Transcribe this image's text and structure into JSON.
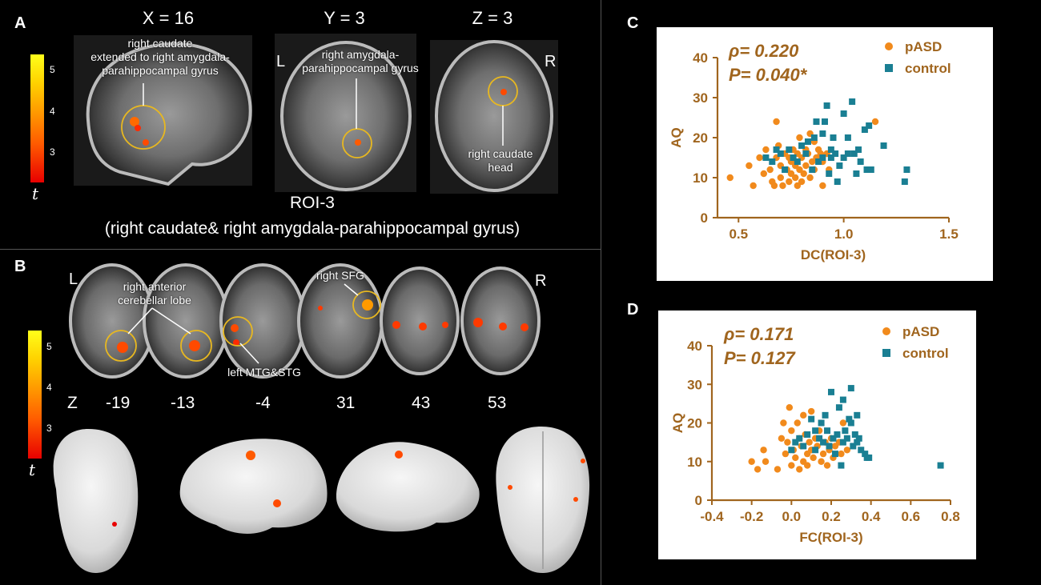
{
  "panels": {
    "a": "A",
    "b": "B",
    "c": "C",
    "d": "D"
  },
  "colorbar": {
    "ticks": [
      "5",
      "4",
      "3"
    ],
    "symbol": "t"
  },
  "panel_a": {
    "slice_labels": [
      "X  = 16",
      "Y = 3",
      "Z = 3"
    ],
    "orient_left": "L",
    "orient_right": "R",
    "ann_caudate_ext": "right caudate\nextended to right amygdala-\nparahippocampal gyrus",
    "ann_amygdala": "right amygdala-\nparahippocampal gyrus",
    "ann_caudate_head": "right caudate\nhead",
    "roi_title": "ROI-3",
    "roi_subtitle": "(right caudate& right amygdala-parahippocampal gyrus)"
  },
  "panel_b": {
    "orient_left": "L",
    "orient_right": "R",
    "ann_cerebellar": "right anterior\ncerebellar lobe",
    "ann_sfg": "right SFG",
    "ann_mtg": "left MTG&STG",
    "z_label": "Z",
    "z_values": [
      "-19",
      "-13",
      "-4",
      "31",
      "43",
      "53"
    ]
  },
  "colors": {
    "pasd": "#f18a1c",
    "control": "#1a7f93",
    "axis": "#a0651e",
    "ring": "#e8b820"
  },
  "chart_data": [
    {
      "type": "scatter",
      "xlabel": "DC(ROI-3)",
      "ylabel": "AQ",
      "xlim": [
        0.4,
        1.5
      ],
      "ylim": [
        0,
        40
      ],
      "xticks": [
        "0.5",
        "1.0",
        "1.5"
      ],
      "yticks": [
        "0",
        "10",
        "20",
        "30",
        "40"
      ],
      "stats": {
        "rho": "ρ= 0.220",
        "p": "P= 0.040*"
      },
      "series": [
        {
          "name": "pASD",
          "marker": "circle",
          "points": [
            [
              0.46,
              10
            ],
            [
              0.55,
              13
            ],
            [
              0.57,
              8
            ],
            [
              0.6,
              15
            ],
            [
              0.62,
              11
            ],
            [
              0.63,
              17
            ],
            [
              0.65,
              12
            ],
            [
              0.66,
              9
            ],
            [
              0.67,
              8
            ],
            [
              0.68,
              15
            ],
            [
              0.68,
              24
            ],
            [
              0.69,
              18
            ],
            [
              0.7,
              13
            ],
            [
              0.7,
              10
            ],
            [
              0.71,
              8
            ],
            [
              0.72,
              16
            ],
            [
              0.73,
              12
            ],
            [
              0.74,
              15
            ],
            [
              0.74,
              9
            ],
            [
              0.75,
              11
            ],
            [
              0.75,
              14
            ],
            [
              0.76,
              17
            ],
            [
              0.77,
              13
            ],
            [
              0.77,
              10
            ],
            [
              0.78,
              8
            ],
            [
              0.78,
              16
            ],
            [
              0.79,
              20
            ],
            [
              0.79,
              12
            ],
            [
              0.8,
              15
            ],
            [
              0.8,
              9
            ],
            [
              0.81,
              11
            ],
            [
              0.82,
              17
            ],
            [
              0.82,
              13
            ],
            [
              0.83,
              16
            ],
            [
              0.84,
              21
            ],
            [
              0.84,
              10
            ],
            [
              0.85,
              14
            ],
            [
              0.86,
              19
            ],
            [
              0.86,
              12
            ],
            [
              0.87,
              15
            ],
            [
              0.88,
              17
            ],
            [
              0.89,
              16
            ],
            [
              0.9,
              8
            ],
            [
              0.9,
              14
            ],
            [
              0.92,
              16
            ],
            [
              0.93,
              12
            ],
            [
              1.15,
              24
            ]
          ]
        },
        {
          "name": "control",
          "marker": "square",
          "points": [
            [
              0.63,
              15
            ],
            [
              0.66,
              14
            ],
            [
              0.68,
              17
            ],
            [
              0.7,
              16
            ],
            [
              0.72,
              12
            ],
            [
              0.74,
              17
            ],
            [
              0.76,
              15
            ],
            [
              0.78,
              14
            ],
            [
              0.8,
              18
            ],
            [
              0.82,
              16
            ],
            [
              0.83,
              19
            ],
            [
              0.85,
              12
            ],
            [
              0.86,
              20
            ],
            [
              0.87,
              24
            ],
            [
              0.88,
              14
            ],
            [
              0.9,
              15
            ],
            [
              0.9,
              21
            ],
            [
              0.91,
              24
            ],
            [
              0.92,
              28
            ],
            [
              0.93,
              11
            ],
            [
              0.94,
              17
            ],
            [
              0.95,
              20
            ],
            [
              0.96,
              16
            ],
            [
              0.97,
              9
            ],
            [
              0.98,
              13
            ],
            [
              1.0,
              15
            ],
            [
              1.0,
              26
            ],
            [
              1.02,
              16
            ],
            [
              1.02,
              20
            ],
            [
              1.04,
              29
            ],
            [
              1.05,
              16
            ],
            [
              1.06,
              11
            ],
            [
              1.07,
              17
            ],
            [
              1.08,
              14
            ],
            [
              1.1,
              22
            ],
            [
              1.11,
              12
            ],
            [
              1.12,
              23
            ],
            [
              1.13,
              12
            ],
            [
              1.19,
              18
            ],
            [
              1.29,
              9
            ],
            [
              1.3,
              12
            ],
            [
              0.94,
              15
            ]
          ]
        }
      ]
    },
    {
      "type": "scatter",
      "xlabel": "FC(ROI-3)",
      "ylabel": "AQ",
      "xlim": [
        -0.4,
        0.8
      ],
      "ylim": [
        0,
        40
      ],
      "xticks": [
        "-0.4",
        "-0.2",
        "0.0",
        "0.2",
        "0.4",
        "0.6",
        "0.8"
      ],
      "yticks": [
        "0",
        "10",
        "20",
        "30",
        "40"
      ],
      "stats": {
        "rho": "ρ= 0.171",
        "p": "P= 0.127"
      },
      "series": [
        {
          "name": "pASD",
          "marker": "circle",
          "points": [
            [
              -0.2,
              10
            ],
            [
              -0.17,
              8
            ],
            [
              -0.14,
              13
            ],
            [
              -0.13,
              10
            ],
            [
              -0.07,
              8
            ],
            [
              -0.05,
              16
            ],
            [
              -0.04,
              20
            ],
            [
              -0.03,
              12
            ],
            [
              -0.02,
              15
            ],
            [
              -0.01,
              24
            ],
            [
              0.0,
              18
            ],
            [
              0.0,
              9
            ],
            [
              0.01,
              13
            ],
            [
              0.02,
              11
            ],
            [
              0.03,
              20
            ],
            [
              0.04,
              16
            ],
            [
              0.04,
              8
            ],
            [
              0.05,
              14
            ],
            [
              0.06,
              22
            ],
            [
              0.06,
              10
            ],
            [
              0.07,
              17
            ],
            [
              0.08,
              12
            ],
            [
              0.08,
              9
            ],
            [
              0.09,
              15
            ],
            [
              0.1,
              13
            ],
            [
              0.1,
              23
            ],
            [
              0.11,
              11
            ],
            [
              0.12,
              16
            ],
            [
              0.13,
              14
            ],
            [
              0.14,
              18
            ],
            [
              0.15,
              10
            ],
            [
              0.16,
              12
            ],
            [
              0.17,
              15
            ],
            [
              0.18,
              9
            ],
            [
              0.19,
              13
            ],
            [
              0.2,
              16
            ],
            [
              0.21,
              11
            ],
            [
              0.22,
              14
            ],
            [
              0.24,
              15
            ],
            [
              0.25,
              12
            ],
            [
              0.26,
              20
            ],
            [
              0.28,
              13
            ]
          ]
        },
        {
          "name": "control",
          "marker": "square",
          "points": [
            [
              0.0,
              13
            ],
            [
              0.02,
              15
            ],
            [
              0.04,
              16
            ],
            [
              0.06,
              14
            ],
            [
              0.08,
              17
            ],
            [
              0.1,
              21
            ],
            [
              0.12,
              18
            ],
            [
              0.12,
              13
            ],
            [
              0.14,
              16
            ],
            [
              0.15,
              20
            ],
            [
              0.16,
              15
            ],
            [
              0.17,
              22
            ],
            [
              0.18,
              18
            ],
            [
              0.19,
              14
            ],
            [
              0.2,
              28
            ],
            [
              0.21,
              16
            ],
            [
              0.22,
              12
            ],
            [
              0.23,
              17
            ],
            [
              0.24,
              24
            ],
            [
              0.25,
              9
            ],
            [
              0.26,
              15
            ],
            [
              0.27,
              18
            ],
            [
              0.28,
              16
            ],
            [
              0.29,
              21
            ],
            [
              0.3,
              29
            ],
            [
              0.31,
              14
            ],
            [
              0.32,
              17
            ],
            [
              0.33,
              22
            ],
            [
              0.34,
              16
            ],
            [
              0.35,
              13
            ],
            [
              0.37,
              12
            ],
            [
              0.38,
              11
            ],
            [
              0.39,
              11
            ],
            [
              0.75,
              9
            ],
            [
              0.26,
              26
            ],
            [
              0.3,
              20
            ],
            [
              0.33,
              15
            ]
          ]
        }
      ]
    }
  ]
}
